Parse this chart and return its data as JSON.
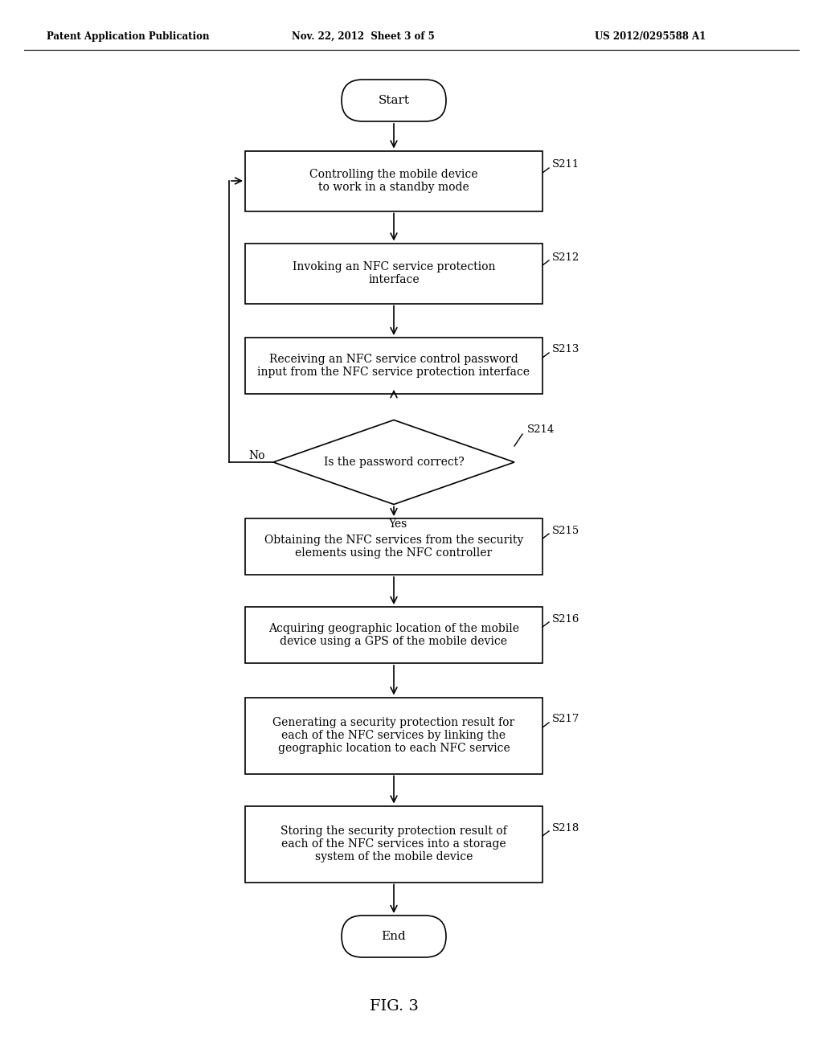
{
  "bg_color": "#ffffff",
  "header_left": "Patent Application Publication",
  "header_mid": "Nov. 22, 2012  Sheet 3 of 5",
  "header_right": "US 2012/0295588 A1",
  "figure_label": "FIG. 3",
  "start_label": "Start",
  "end_label": "End",
  "s211_text": "Controlling the mobile device\nto work in a standby mode",
  "s212_text": "Invoking an NFC service protection\ninterface",
  "s213_text": "Receiving an NFC service control password\ninput from the NFC service protection interface",
  "s214_text": "Is the password correct?",
  "s215_text": "Obtaining the NFC services from the security\nelements using the NFC controller",
  "s216_text": "Acquiring geographic location of the mobile\ndevice using a GPS of the mobile device",
  "s217_text": "Generating a security protection result for\neach of the NFC services by linking the\ngeographic location to each NFC service",
  "s218_text": "Storing the security protection result of\neach of the NFC services into a storage\nsystem of the mobile device",
  "no_label": "No",
  "yes_label": "Yes"
}
